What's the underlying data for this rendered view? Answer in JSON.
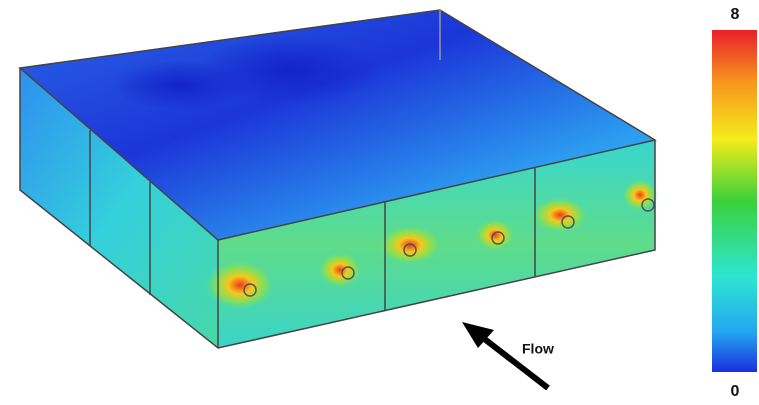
{
  "colorbar": {
    "max_label": "8",
    "min_label": "0"
  },
  "annotation": "Flow"
}
